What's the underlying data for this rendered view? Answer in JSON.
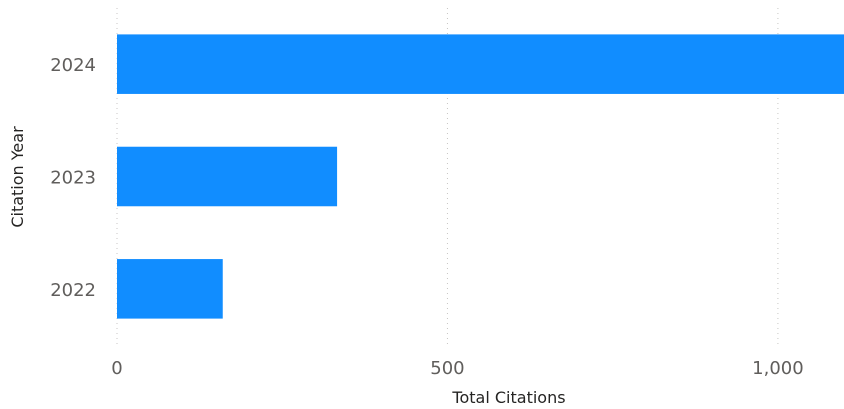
{
  "chart_data": {
    "type": "bar",
    "orientation": "horizontal",
    "title": "",
    "xlabel": "Total Citations",
    "ylabel": "Citation Year",
    "categories": [
      "2024",
      "2023",
      "2022"
    ],
    "values": [
      1100,
      333,
      160
    ],
    "xlim": [
      0,
      1100
    ],
    "x_ticks": [
      0,
      500,
      1000
    ],
    "x_tick_labels": [
      "0",
      "500",
      "1,000"
    ],
    "grid": "vertical dotted",
    "bar_color": "#118DFF"
  }
}
